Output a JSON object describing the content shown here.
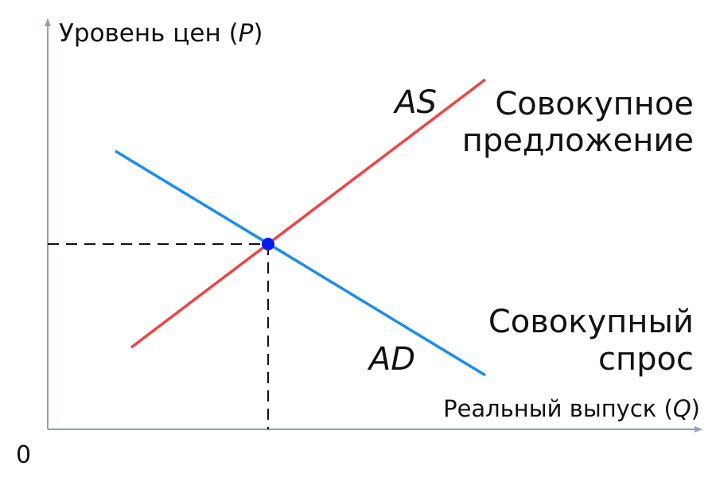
{
  "y_axis": {
    "label_prefix": "Уровень цен (",
    "symbol": "P",
    "label_suffix": ")"
  },
  "x_axis": {
    "label_prefix": "Реальный выпуск (",
    "symbol": "Q",
    "label_suffix": ")"
  },
  "origin": "0",
  "curves": [
    {
      "symbol": "AS",
      "name_lines": [
        "Совокупное",
        "предложение"
      ]
    },
    {
      "symbol": "AD",
      "name_lines": [
        "Совокупный",
        "спрос"
      ]
    }
  ]
}
